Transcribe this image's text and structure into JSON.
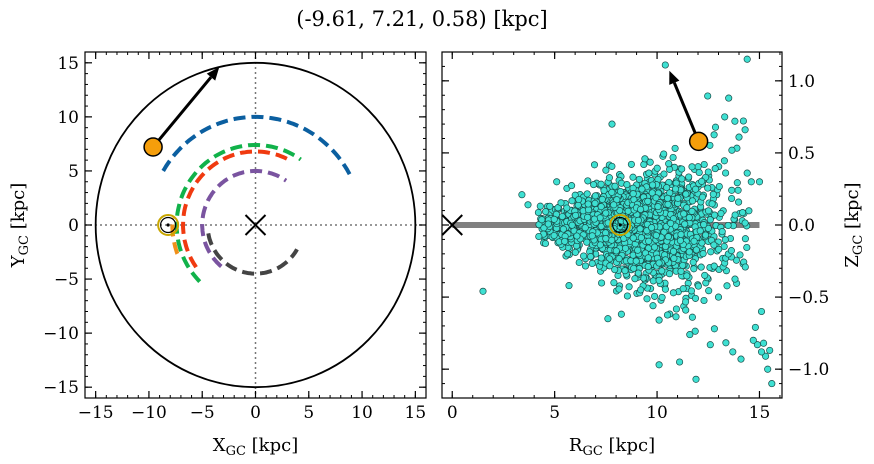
{
  "chart_data": [
    {
      "type": "line",
      "panel": "left",
      "suptitle": "(-9.61, 7.21, 0.58) [kpc]",
      "xlabel": "X",
      "xlabel_sub": "GC",
      "xlabel_unit": " [kpc]",
      "ylabel": "Y",
      "ylabel_sub": "GC",
      "ylabel_unit": " [kpc]",
      "xlim": [
        -16,
        16
      ],
      "ylim": [
        -16,
        16
      ],
      "xticks": [
        -15,
        -10,
        -5,
        0,
        5,
        10,
        15
      ],
      "xtick_labels": [
        "−15",
        "−10",
        "−5",
        "0",
        "5",
        "10",
        "15"
      ],
      "yticks": [
        -15,
        -10,
        -5,
        0,
        5,
        10,
        15
      ],
      "ytick_labels": [
        "−15",
        "−10",
        "−5",
        "0",
        "5",
        "10",
        "15"
      ],
      "boundary_circle_radius": 15,
      "reference_lines": [
        0,
        0
      ],
      "center_marker": [
        0,
        0
      ],
      "sun_position": [
        -8.2,
        0
      ],
      "object_position": [
        -9.61,
        7.21
      ],
      "velocity_arrow_tip": [
        -3.4,
        14.6
      ],
      "spiral_arms": [
        {
          "color": "#0b5fa0",
          "radius": 10.0,
          "theta_start_deg": 150,
          "theta_end_deg": 28
        },
        {
          "color": "#11b24a",
          "radius": 7.4,
          "theta_start_deg": 225,
          "theta_end_deg": 55
        },
        {
          "color": "#f0901a",
          "radius": 7.8,
          "theta_start_deg": 200,
          "theta_end_deg": 175
        },
        {
          "color": "#f03a10",
          "radius": 6.8,
          "theta_start_deg": 215,
          "theta_end_deg": 62
        },
        {
          "color": "#7a54a0",
          "radius": 5.0,
          "theta_start_deg": 230,
          "theta_end_deg": 55
        },
        {
          "color": "#444444",
          "radius": 4.5,
          "theta_start_deg": 190,
          "theta_end_deg": 330
        }
      ]
    },
    {
      "type": "scatter",
      "panel": "right",
      "xlabel": "R",
      "xlabel_sub": "GC",
      "xlabel_unit": " [kpc]",
      "ylabel": "Z",
      "ylabel_sub": "GC",
      "ylabel_unit": " [kpc]",
      "xlim": [
        -0.5,
        16.1
      ],
      "ylim": [
        -1.2,
        1.2
      ],
      "xticks": [
        0,
        5,
        10,
        15
      ],
      "xtick_labels": [
        "0",
        "5",
        "10",
        "15"
      ],
      "yticks": [
        -1.0,
        -0.5,
        0.0,
        0.5,
        1.0
      ],
      "ytick_labels": [
        "−1.0",
        "−0.5",
        "0.0",
        "0.5",
        "1.0"
      ],
      "disk_line": {
        "x": [
          0,
          15
        ],
        "y": 0
      },
      "center_marker": [
        0,
        0
      ],
      "sun_position": [
        8.2,
        0
      ],
      "object_position": [
        12.03,
        0.58
      ],
      "velocity_arrow_tip": [
        10.6,
        1.07
      ],
      "scatter_points": {
        "count": 2000,
        "core_r_range": [
          4.2,
          14.5
        ],
        "core_r_peak": 9,
        "core_z_scale_at_r5": 0.07,
        "core_z_scale_at_r14": 0.3,
        "outliers": [
          [
            1.5,
            -0.46
          ],
          [
            3.4,
            0.21
          ],
          [
            3.7,
            0.14
          ],
          [
            5.1,
            0.3
          ],
          [
            5.7,
            -0.42
          ],
          [
            7.6,
            -0.65
          ],
          [
            7.5,
            0.38
          ],
          [
            7.8,
            0.7
          ],
          [
            9.6,
            0.36
          ],
          [
            9.8,
            -0.56
          ],
          [
            10.1,
            -0.66
          ],
          [
            10.1,
            -0.97
          ],
          [
            10.4,
            1.11
          ],
          [
            10.8,
            -0.47
          ],
          [
            11.6,
            -0.76
          ],
          [
            11.9,
            -1.07
          ],
          [
            12.3,
            0.42
          ],
          [
            13.7,
            -0.88
          ],
          [
            14.1,
            -0.93
          ],
          [
            14.4,
            1.15
          ],
          [
            14.4,
            0.36
          ],
          [
            14.6,
            0.3
          ],
          [
            14.8,
            -0.71
          ],
          [
            15.2,
            -0.82
          ],
          [
            15.3,
            -0.91
          ],
          [
            15.4,
            -1.0
          ],
          [
            15.6,
            -1.1
          ],
          [
            15.5,
            -0.87
          ],
          [
            15.1,
            -0.88
          ],
          [
            14.9,
            -0.83
          ],
          [
            14.7,
            -0.8
          ],
          [
            15.1,
            -0.6
          ],
          [
            14.3,
            0.66
          ],
          [
            13.3,
            0.75
          ],
          [
            13.8,
            0.72
          ],
          [
            14.0,
            0.61
          ],
          [
            11.1,
            -0.95
          ],
          [
            11.4,
            -0.59
          ],
          [
            13.0,
            -0.5
          ],
          [
            12.6,
            -0.83
          ],
          [
            12.8,
            -0.72
          ],
          [
            13.5,
            0.88
          ],
          [
            15.0,
            0.3
          ],
          [
            10.9,
            0.25
          ],
          [
            9.2,
            -0.45
          ],
          [
            6.9,
            0.28
          ],
          [
            6.2,
            -0.26
          ]
        ]
      },
      "colors": {
        "scatter_fill": "#3ee0d2",
        "scatter_edge": "#1a4d49",
        "disk_line": "#808080",
        "sun_ring": "#c8a600",
        "object": "#f59e0b"
      }
    }
  ]
}
